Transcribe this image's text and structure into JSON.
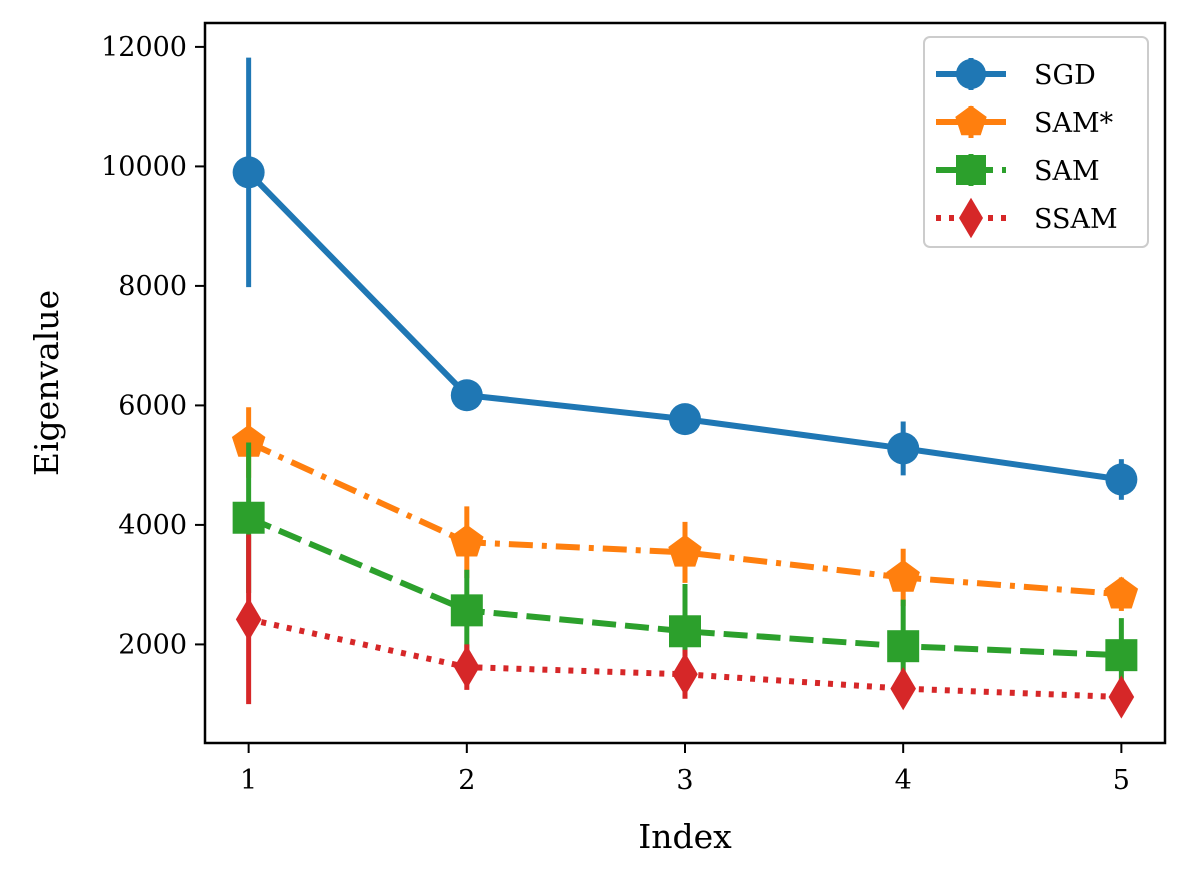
{
  "chart_data": {
    "type": "line",
    "title": "",
    "xlabel": "Index",
    "ylabel": "Eigenvalue",
    "x": [
      1,
      2,
      3,
      4,
      5
    ],
    "xlim": [
      0.8,
      5.2
    ],
    "ylim": [
      350,
      12400
    ],
    "xticks": [
      "1",
      "2",
      "3",
      "4",
      "5"
    ],
    "yticks": [
      2000,
      4000,
      6000,
      8000,
      10000,
      12000
    ],
    "ytick_labels": [
      "2000",
      "4000",
      "6000",
      "8000",
      "10000",
      "12000"
    ],
    "grid": false,
    "legend_position": "top-right",
    "series": [
      {
        "name": "SGD",
        "color": "#1f77b4",
        "marker": "circle",
        "linestyle": "solid",
        "values": [
          9900,
          6170,
          5770,
          5280,
          4760
        ],
        "errors": [
          1920,
          110,
          110,
          450,
          340
        ]
      },
      {
        "name": "SAM*",
        "color": "#ff7f0e",
        "marker": "pentagon",
        "linestyle": "dashdot",
        "values": [
          5380,
          3710,
          3540,
          3120,
          2840
        ],
        "errors": [
          590,
          600,
          510,
          480,
          280
        ]
      },
      {
        "name": "SAM",
        "color": "#2ca02c",
        "marker": "square",
        "linestyle": "dashed",
        "values": [
          4120,
          2570,
          2220,
          1970,
          1820
        ],
        "errors": [
          1260,
          680,
          790,
          780,
          620
        ]
      },
      {
        "name": "SSAM",
        "color": "#d62728",
        "marker": "diamond",
        "linestyle": "dotted",
        "values": [
          2420,
          1620,
          1500,
          1260,
          1120
        ],
        "errors": [
          1420,
          380,
          410,
          200,
          210
        ]
      }
    ]
  }
}
